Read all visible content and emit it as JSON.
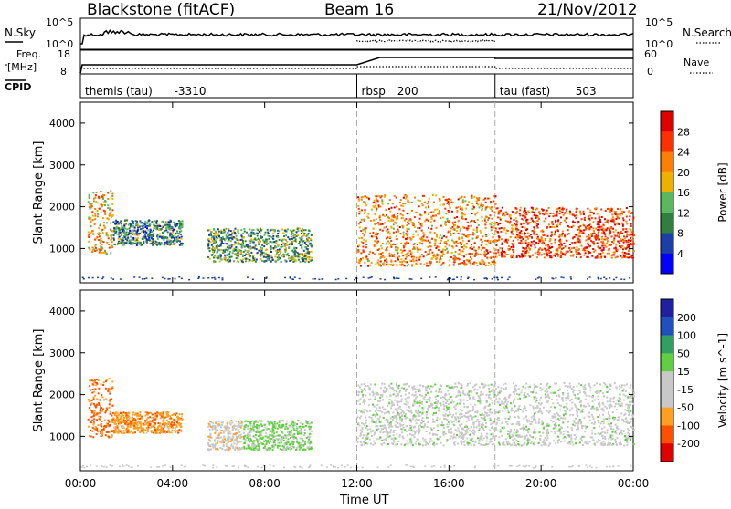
{
  "header": {
    "station": "Blackstone (fitACF)",
    "beam": "Beam 16",
    "date": "21/Nov/2012"
  },
  "noise_panel": {
    "left_label": "N.Sky",
    "right_label": "N.Search",
    "left_ticks": [
      "10^5",
      "10^0"
    ],
    "right_ticks": [
      "10^5",
      "10^0"
    ]
  },
  "freq_panel": {
    "left_label_1": "Freq.",
    "left_label_2": "[MHz]",
    "right_label": "Nave",
    "left_ticks": [
      "18",
      "8"
    ],
    "right_ticks": [
      "60",
      "0"
    ]
  },
  "cpid_panel": {
    "label": "CPID",
    "segments": [
      {
        "name": "themis (tau)",
        "id": "-3310"
      },
      {
        "name": "rbsp",
        "id": "200"
      },
      {
        "name": "tau (fast)",
        "id": "503"
      }
    ]
  },
  "x_axis": {
    "label": "Time UT",
    "ticks": [
      "00:00",
      "04:00",
      "08:00",
      "12:00",
      "16:00",
      "20:00",
      "00:00"
    ]
  },
  "colors": {
    "power": [
      "#0000ff",
      "#1a3fa8",
      "#2f7f3f",
      "#5cb85c",
      "#f0b000",
      "#ff7f00",
      "#ff3000",
      "#e00000"
    ],
    "velocity": [
      "#e00000",
      "#ff5000",
      "#ffa020",
      "#c8c8c8",
      "#c8c8c8",
      "#60d040",
      "#30a060",
      "#2050c0",
      "#2020a0"
    ],
    "grid": "#aaaaaa"
  },
  "chart_data": [
    {
      "type": "heatmap",
      "panel": "power",
      "ylabel": "Slant Range [km]",
      "yticks": [
        "4000",
        "3000",
        "2000",
        "1000"
      ],
      "ylim": [
        180,
        4500
      ],
      "xlim_hours": [
        0,
        24
      ],
      "colorbar_label": "Power [dB]",
      "colorbar_ticks": [
        "28",
        "24",
        "20",
        "16",
        "12",
        "8",
        "4"
      ],
      "clim": [
        0,
        32
      ],
      "regions": [
        {
          "t0": 0.3,
          "t1": 1.4,
          "r0": 900,
          "r1": 2400,
          "value": 20
        },
        {
          "t0": 1.4,
          "t1": 4.4,
          "r0": 1100,
          "r1": 1700,
          "value": 10
        },
        {
          "t0": 5.5,
          "t1": 10.0,
          "r0": 700,
          "r1": 1500,
          "value": 12
        },
        {
          "t0": 12.0,
          "t1": 18.0,
          "r0": 600,
          "r1": 2300,
          "value": 22
        },
        {
          "t0": 18.0,
          "t1": 24.0,
          "r0": 800,
          "r1": 2000,
          "value": 26
        }
      ]
    },
    {
      "type": "heatmap",
      "panel": "velocity",
      "ylabel": "Slant Range [km]",
      "yticks": [
        "4000",
        "3000",
        "2000",
        "1000"
      ],
      "ylim": [
        180,
        4500
      ],
      "xlim_hours": [
        0,
        24
      ],
      "colorbar_label": "Velocity [m s^-1]",
      "colorbar_ticks": [
        "200",
        "100",
        "50",
        "15",
        "-15",
        "-50",
        "-100",
        "-200"
      ],
      "clim": [
        -250,
        250
      ],
      "regions": [
        {
          "t0": 0.3,
          "t1": 1.4,
          "r0": 1000,
          "r1": 2400,
          "value": -150
        },
        {
          "t0": 1.4,
          "t1": 4.4,
          "r0": 1100,
          "r1": 1600,
          "value": -120
        },
        {
          "t0": 5.5,
          "t1": 7.0,
          "r0": 700,
          "r1": 1400,
          "value": -60
        },
        {
          "t0": 7.0,
          "t1": 10.0,
          "r0": 700,
          "r1": 1400,
          "value": 40
        },
        {
          "t0": 12.0,
          "t1": 24.0,
          "r0": 800,
          "r1": 2300,
          "value": 0
        }
      ]
    }
  ]
}
